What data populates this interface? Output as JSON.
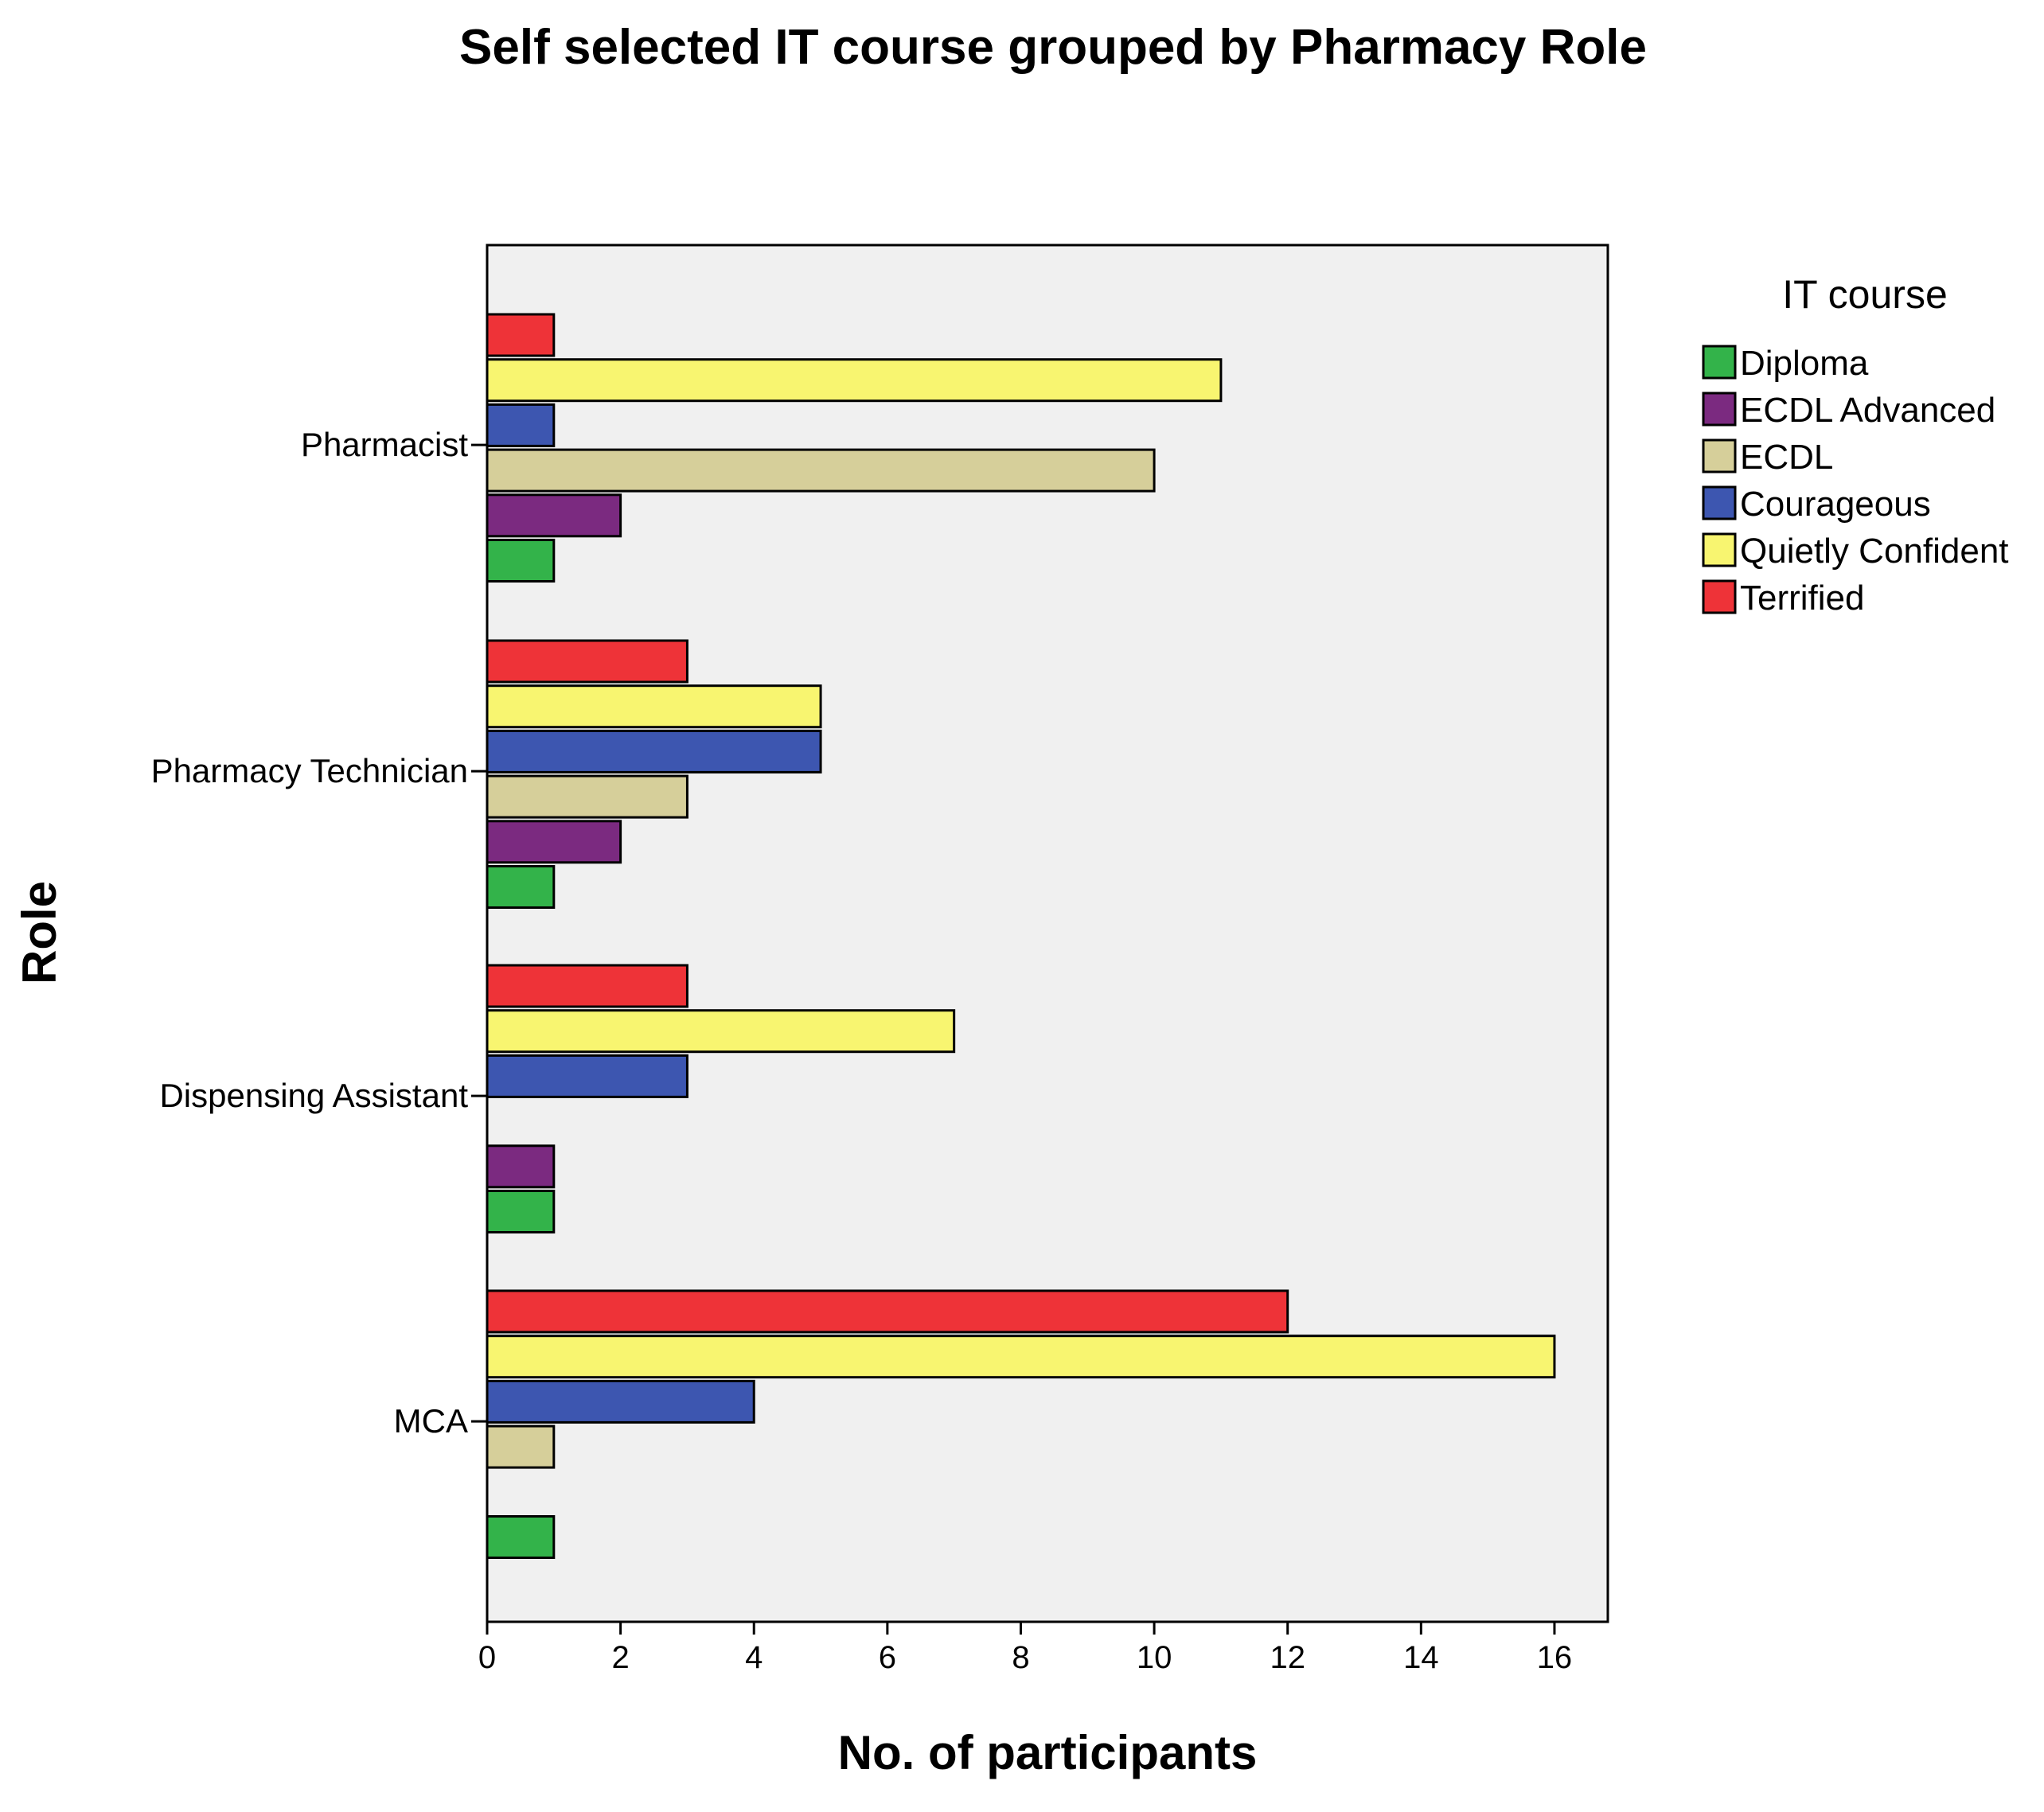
{
  "chart_data": {
    "type": "bar",
    "orientation": "horizontal",
    "title": "Self selected IT course grouped by Pharmacy Role",
    "xlabel": "No. of participants",
    "ylabel": "Role",
    "xlim": [
      0,
      16.8
    ],
    "xticks": [
      "0",
      "2",
      "4",
      "6",
      "8",
      "10",
      "12",
      "14",
      "16"
    ],
    "categories": [
      "Pharmacist",
      "Pharmacy Technician",
      "Dispensing Assistant",
      "MCA"
    ],
    "legend_title": "IT course",
    "legend_position": "right",
    "grid": false,
    "series": [
      {
        "name": "Diploma",
        "color": "#33b34a",
        "values": [
          1,
          1,
          1,
          1
        ]
      },
      {
        "name": "ECDL Advanced",
        "color": "#7b2a80",
        "values": [
          2,
          2,
          1,
          0
        ]
      },
      {
        "name": "ECDL",
        "color": "#d6cf9a",
        "values": [
          10,
          3,
          0,
          1
        ]
      },
      {
        "name": "Courageous",
        "color": "#3d56b0",
        "values": [
          1,
          5,
          3,
          4
        ]
      },
      {
        "name": "Quietly Confident",
        "color": "#f8f570",
        "values": [
          11,
          5,
          7,
          16
        ]
      },
      {
        "name": "Terrified",
        "color": "#ee3338",
        "values": [
          1,
          3,
          3,
          12
        ]
      }
    ]
  }
}
